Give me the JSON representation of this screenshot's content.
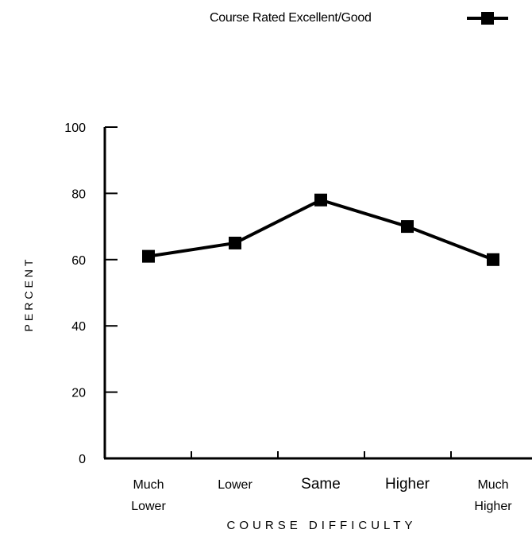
{
  "chart_data": {
    "type": "line",
    "categories": [
      "Much\nLower",
      "Lower",
      "Same",
      "Higher",
      "Much\nHigher"
    ],
    "series": [
      {
        "name": "Course Rated Excellent/Good",
        "values": [
          61,
          65,
          78,
          70,
          60
        ]
      }
    ],
    "ylim": [
      0,
      100
    ],
    "yticks": [
      0,
      20,
      40,
      60,
      80,
      100
    ],
    "xlabel": "COURSE DIFFICULTY",
    "ylabel": "PERCENT",
    "grid": false,
    "legend_position": "top-right",
    "line_color": "#000000",
    "marker": "square"
  }
}
